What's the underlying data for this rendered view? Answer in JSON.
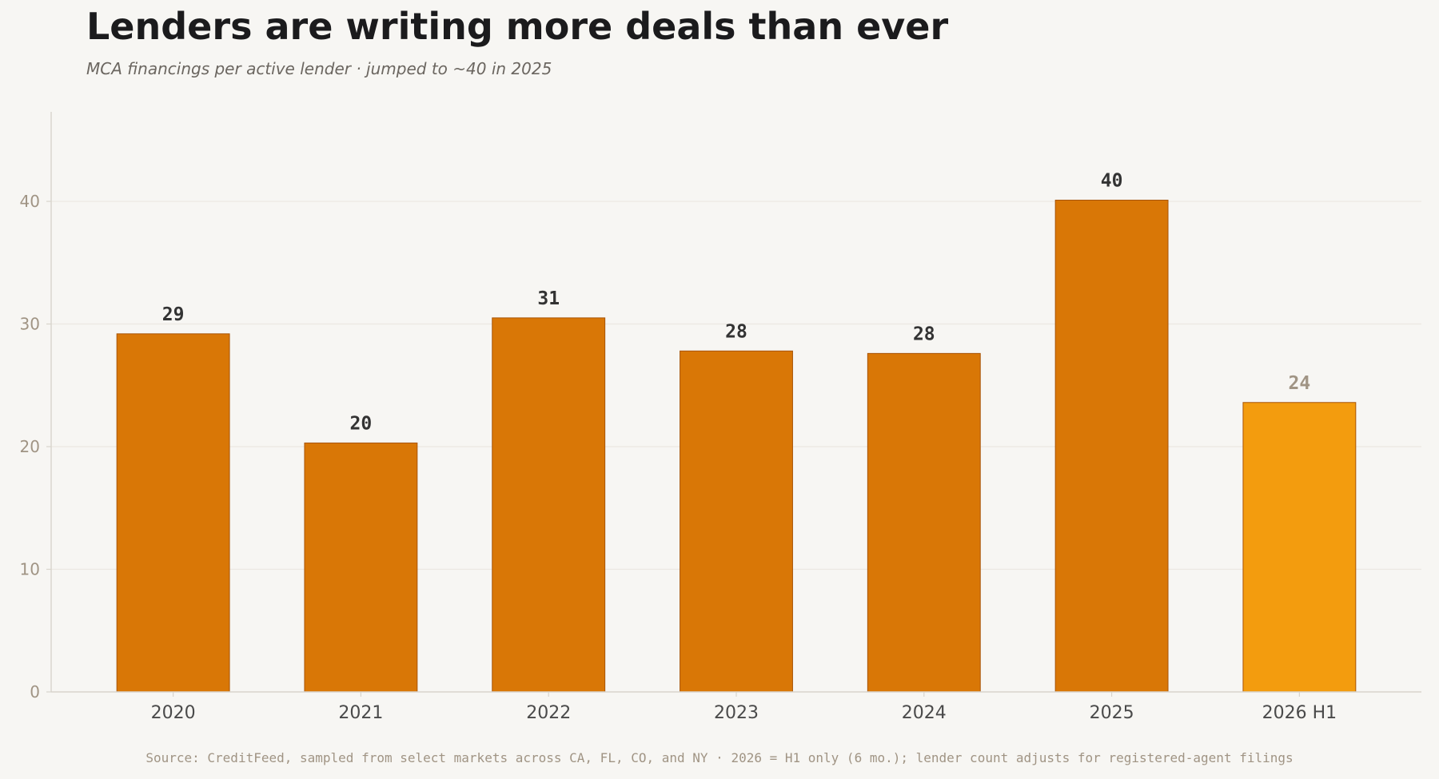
{
  "header": {
    "title": "Lenders are writing more deals than ever",
    "subtitle": "MCA financings per active lender  ·  jumped to ~40 in 2025"
  },
  "footer": {
    "source": "Source: CreditFeed, sampled from select markets across CA, FL, CO, and NY  ·  2026 = H1 only (6 mo.); lender count adjusts for registered-agent filings"
  },
  "colors": {
    "bar": "#d97706",
    "bar_partial": "#f39c0e",
    "bar_edge": "#a85406",
    "label": "#333333",
    "label_partial": "#a09484",
    "tick_y": "#a09484",
    "tick_x": "#4a4a4a",
    "grid": "#ebe8e2",
    "axis": "#d8d4cc"
  },
  "chart_data": {
    "type": "bar",
    "title": "Lenders are writing more deals than ever",
    "subtitle": "MCA financings per active lender  ·  jumped to ~40 in 2025",
    "categories": [
      "2020",
      "2021",
      "2022",
      "2023",
      "2024",
      "2025",
      "2026 H1"
    ],
    "values": [
      29.2,
      20.3,
      30.5,
      27.8,
      27.6,
      40.1,
      23.6
    ],
    "data_labels": [
      "29",
      "20",
      "31",
      "28",
      "28",
      "40",
      "24"
    ],
    "partial": [
      false,
      false,
      false,
      false,
      false,
      false,
      true
    ],
    "xlabel": "",
    "ylabel": "",
    "ylim": [
      0,
      47.3
    ],
    "yticks": [
      0,
      10,
      20,
      30,
      40
    ],
    "grid": true
  }
}
